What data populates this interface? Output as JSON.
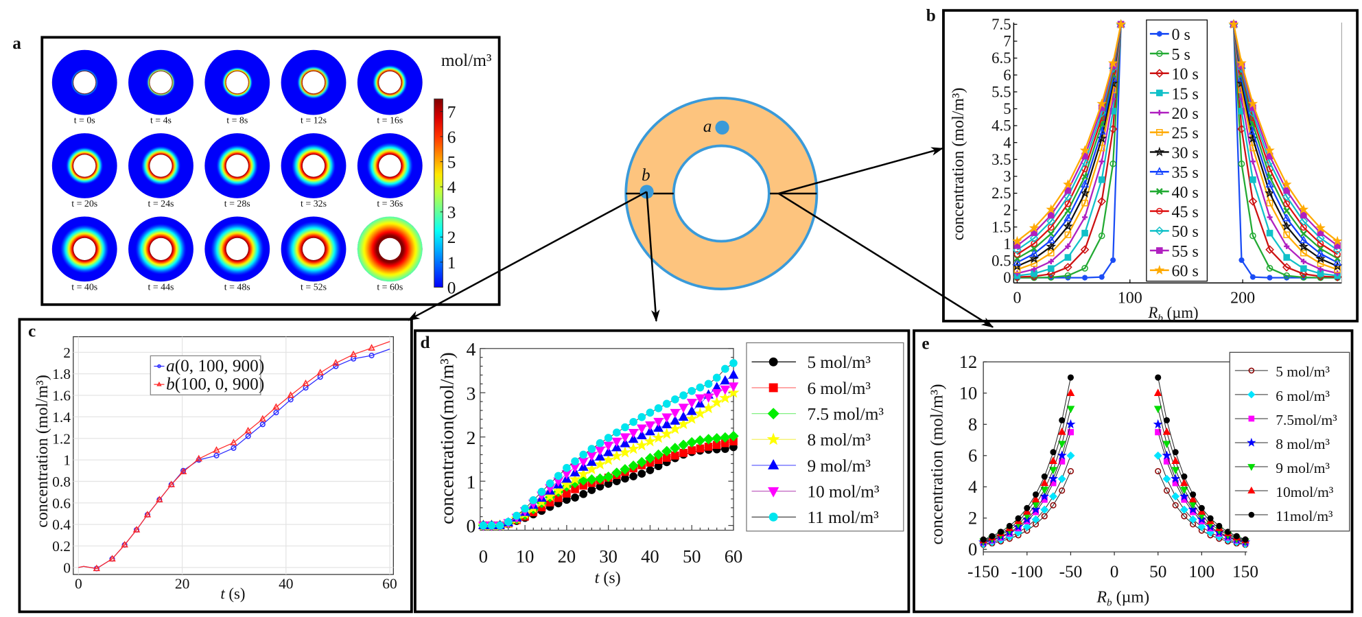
{
  "panel_labels": {
    "a": "a",
    "b": "b",
    "c": "c",
    "d": "d",
    "e": "e"
  },
  "schematic": {
    "point_a": "a",
    "point_b": "b",
    "colors": {
      "annulus": "#fdc47e",
      "border": "#3a9ad9",
      "point": "#3a9ad9"
    }
  },
  "chart_data": [
    {
      "panel": "a",
      "type": "heatmap",
      "colormap": "jet",
      "unit": "mol/m³",
      "frames": [
        {
          "t": 0,
          "label": "t = 0s"
        },
        {
          "t": 4,
          "label": "t = 4s"
        },
        {
          "t": 8,
          "label": "t = 8s"
        },
        {
          "t": 12,
          "label": "t = 12s"
        },
        {
          "t": 16,
          "label": "t = 16s"
        },
        {
          "t": 20,
          "label": "t = 20s"
        },
        {
          "t": 24,
          "label": "t = 24s"
        },
        {
          "t": 28,
          "label": "t = 28s"
        },
        {
          "t": 32,
          "label": "t = 32s"
        },
        {
          "t": 36,
          "label": "t = 36s"
        },
        {
          "t": 40,
          "label": "t = 40s"
        },
        {
          "t": 44,
          "label": "t = 44s"
        },
        {
          "t": 48,
          "label": "t = 48s"
        },
        {
          "t": 52,
          "label": "t = 52s"
        },
        {
          "t": 60,
          "label": "t = 60s"
        }
      ],
      "colorbar": {
        "min": 0,
        "max": 7.5,
        "ticks": [
          0,
          1,
          2,
          3,
          4,
          5,
          6,
          7
        ]
      }
    },
    {
      "panel": "b",
      "type": "line",
      "ylabel": "concentration (mol/m³)",
      "xlabel_var": "R",
      "xlabel_sub": "b",
      "xlabel_unit": " (µm)",
      "xlim": [
        0,
        287
      ],
      "ylim": [
        0,
        7.5
      ],
      "xticks": [
        0,
        100,
        200
      ],
      "yticks": [
        0,
        0.5,
        1,
        1.5,
        2,
        2.5,
        3,
        3.5,
        4,
        4.5,
        5,
        5.5,
        6,
        6.5,
        7,
        7.5
      ],
      "legend_position": "center",
      "symmetric": true,
      "x_left": [
        0,
        15,
        30,
        45,
        60,
        75,
        85,
        92
      ],
      "x_right": [
        192,
        199,
        209,
        224,
        239,
        254,
        269,
        284
      ],
      "series": [
        {
          "name": "0 s",
          "color": "#1a4cf5",
          "marker": "asterisk",
          "filled": false,
          "values_left": [
            0,
            0,
            0,
            0,
            0,
            0.02,
            0.52,
            7.5
          ]
        },
        {
          "name": "5 s",
          "color": "#22aa33",
          "marker": "circle",
          "filled": false,
          "values_left": [
            0,
            0,
            0.01,
            0.06,
            0.28,
            1.24,
            3.37,
            7.5
          ]
        },
        {
          "name": "10 s",
          "color": "#cc1111",
          "marker": "diamond",
          "filled": false,
          "values_left": [
            0.02,
            0.04,
            0.11,
            0.31,
            0.83,
            2.26,
            4.4,
            7.5
          ]
        },
        {
          "name": "15 s",
          "color": "#11c0c8",
          "marker": "square",
          "filled": true,
          "values_left": [
            0.06,
            0.12,
            0.27,
            0.6,
            1.32,
            2.9,
            4.93,
            7.5
          ]
        },
        {
          "name": "20 s",
          "color": "#b020c0",
          "marker": "plus",
          "filled": false,
          "values_left": [
            0.13,
            0.25,
            0.48,
            0.93,
            1.79,
            3.44,
            5.29,
            7.5
          ]
        },
        {
          "name": "25 s",
          "color": "#ffaa00",
          "marker": "square",
          "filled": false,
          "values_left": [
            0.24,
            0.42,
            0.73,
            1.27,
            2.21,
            3.84,
            5.56,
            7.5
          ]
        },
        {
          "name": "30 s",
          "color": "#111111",
          "marker": "star",
          "filled": false,
          "values_left": [
            0.34,
            0.56,
            0.92,
            1.52,
            2.5,
            4.12,
            5.75,
            7.5
          ]
        },
        {
          "name": "35 s",
          "color": "#1040ff",
          "marker": "triangle",
          "filled": false,
          "values_left": [
            0.45,
            0.71,
            1.11,
            1.76,
            2.76,
            4.33,
            5.89,
            7.5
          ]
        },
        {
          "name": "40 s",
          "color": "#22aa33",
          "marker": "x",
          "filled": false,
          "values_left": [
            0.57,
            0.86,
            1.3,
            1.98,
            2.99,
            4.55,
            6.01,
            7.5
          ]
        },
        {
          "name": "45 s",
          "color": "#dd1111",
          "marker": "circle",
          "filled": false,
          "values_left": [
            0.69,
            1.01,
            1.49,
            2.19,
            3.22,
            4.73,
            6.11,
            7.5
          ]
        },
        {
          "name": "50 s",
          "color": "#11c0c8",
          "marker": "diamond",
          "filled": false,
          "values_left": [
            0.82,
            1.17,
            1.67,
            2.4,
            3.42,
            4.88,
            6.2,
            7.5
          ]
        },
        {
          "name": "55 s",
          "color": "#b020c0",
          "marker": "square",
          "filled": true,
          "values_left": [
            0.95,
            1.33,
            1.85,
            2.58,
            3.6,
            5.03,
            6.28,
            7.5
          ]
        },
        {
          "name": "60 s",
          "color": "#ffaa00",
          "marker": "star",
          "filled": true,
          "values_left": [
            1.08,
            1.47,
            2.02,
            2.76,
            3.77,
            5.15,
            6.35,
            7.5
          ]
        }
      ]
    },
    {
      "panel": "c",
      "type": "line",
      "ylabel": "concentration (mol/m³)",
      "xlabel_var": "t",
      "xlabel_unit": " (s)",
      "xlim": [
        -1,
        60.7
      ],
      "ylim": [
        -0.065,
        2.145
      ],
      "xticks": [
        0,
        20,
        40,
        60
      ],
      "yticks": [
        0,
        0.2,
        0.4,
        0.6,
        0.8,
        1,
        1.2,
        1.4,
        1.6,
        1.8,
        2
      ],
      "grid": true,
      "legend_position": "top-left",
      "x": [
        0,
        1,
        3.5,
        6.5,
        8.9,
        11.2,
        13.3,
        15.6,
        17.9,
        20.2,
        23.2,
        26.6,
        29.9,
        32.7,
        35.5,
        38.1,
        40.9,
        43.8,
        46.6,
        49.6,
        53,
        56.5,
        60
      ],
      "series": [
        {
          "name_var": "a",
          "name_coords": "(0, 100, 900)",
          "color": "#2a2aff",
          "marker": "circle",
          "filled": false,
          "values": [
            0,
            0.01,
            -0.01,
            0.08,
            0.21,
            0.35,
            0.49,
            0.63,
            0.77,
            0.9,
            1.0,
            1.04,
            1.11,
            1.22,
            1.33,
            1.44,
            1.56,
            1.67,
            1.77,
            1.87,
            1.94,
            1.97,
            2.03
          ]
        },
        {
          "name_var": "b",
          "name_coords": "(100, 0, 900)",
          "color": "#ff2a2a",
          "marker": "triangle",
          "filled": false,
          "values": [
            0,
            0.01,
            -0.01,
            0.08,
            0.21,
            0.35,
            0.49,
            0.63,
            0.77,
            0.89,
            1.01,
            1.09,
            1.16,
            1.27,
            1.38,
            1.49,
            1.6,
            1.71,
            1.81,
            1.9,
            1.98,
            2.04,
            2.1
          ]
        }
      ]
    },
    {
      "panel": "d",
      "type": "line",
      "ylabel": "concentration(mol/m³)",
      "xlabel_var": "t",
      "xlabel_unit": " (s)",
      "xlim": [
        0,
        60
      ],
      "ylim": [
        -0.11,
        4
      ],
      "xticks": [
        0,
        10,
        20,
        30,
        40,
        50,
        60
      ],
      "yticks": [
        0,
        1,
        2,
        3,
        4
      ],
      "legend_position": "right",
      "x": [
        0,
        2,
        4,
        6,
        8,
        10,
        12,
        14,
        16,
        18,
        20,
        22,
        24,
        26,
        28,
        30,
        32,
        34,
        36,
        38,
        40,
        42,
        44,
        46,
        48,
        50,
        52,
        54,
        56,
        58,
        60
      ],
      "series": [
        {
          "name": "5 mol/m³",
          "color": "#000000",
          "line_color": "#000000",
          "marker": "circle",
          "filled": true,
          "values": [
            0,
            0,
            0,
            0.03,
            0.1,
            0.17,
            0.25,
            0.33,
            0.42,
            0.5,
            0.58,
            0.63,
            0.71,
            0.8,
            0.88,
            0.94,
            1.0,
            1.06,
            1.11,
            1.17,
            1.25,
            1.34,
            1.43,
            1.52,
            1.6,
            1.66,
            1.69,
            1.71,
            1.72,
            1.73,
            1.77
          ]
        },
        {
          "name": "6 mol/m³",
          "color": "#ff0000",
          "line_color": "#ff8080",
          "marker": "square",
          "filled": true,
          "values": [
            0,
            0,
            0,
            0.04,
            0.12,
            0.2,
            0.3,
            0.41,
            0.52,
            0.62,
            0.72,
            0.82,
            0.9,
            0.96,
            1.02,
            1.08,
            1.14,
            1.21,
            1.29,
            1.36,
            1.42,
            1.48,
            1.53,
            1.58,
            1.64,
            1.7,
            1.74,
            1.78,
            1.82,
            1.86,
            1.9
          ]
        },
        {
          "name": "7.5 mol/m³",
          "color": "#00ee00",
          "line_color": "#80f080",
          "marker": "diamond",
          "filled": true,
          "values": [
            0,
            0,
            0,
            0.05,
            0.14,
            0.24,
            0.37,
            0.51,
            0.64,
            0.76,
            0.88,
            0.96,
            1.02,
            1.04,
            1.06,
            1.1,
            1.19,
            1.27,
            1.35,
            1.43,
            1.52,
            1.6,
            1.68,
            1.75,
            1.82,
            1.88,
            1.92,
            1.95,
            1.97,
            1.99,
            2.02
          ]
        },
        {
          "name": "8 mol/m³",
          "color": "#ffff00",
          "line_color": "#f4f060",
          "marker": "star",
          "filled": true,
          "values": [
            0,
            0,
            0,
            0.05,
            0.15,
            0.26,
            0.39,
            0.53,
            0.66,
            0.78,
            0.92,
            1.04,
            1.16,
            1.27,
            1.38,
            1.48,
            1.57,
            1.65,
            1.73,
            1.81,
            1.9,
            1.98,
            2.07,
            2.18,
            2.29,
            2.41,
            2.53,
            2.65,
            2.78,
            2.88,
            3.0
          ]
        },
        {
          "name": "9 mol/m³",
          "color": "#0000ff",
          "line_color": "#6060ff",
          "marker": "triangle",
          "filled": true,
          "values": [
            0,
            0,
            0,
            0.06,
            0.17,
            0.3,
            0.46,
            0.62,
            0.78,
            0.92,
            1.05,
            1.19,
            1.32,
            1.43,
            1.55,
            1.65,
            1.76,
            1.85,
            1.95,
            2.03,
            2.12,
            2.2,
            2.28,
            2.36,
            2.45,
            2.58,
            2.75,
            2.95,
            3.12,
            3.27,
            3.4
          ]
        },
        {
          "name": "10 mol/m³",
          "color": "#ff00ff",
          "line_color": "#c060c0",
          "marker": "triangle-down",
          "filled": true,
          "values": [
            0,
            0,
            0,
            0.06,
            0.18,
            0.33,
            0.5,
            0.68,
            0.85,
            1.0,
            1.17,
            1.32,
            1.45,
            1.58,
            1.7,
            1.81,
            1.9,
            2.0,
            2.1,
            2.2,
            2.27,
            2.35,
            2.45,
            2.55,
            2.67,
            2.78,
            2.88,
            2.9,
            3.0,
            3.08,
            3.15
          ]
        },
        {
          "name": "11 mol/m³",
          "color": "#00e5ee",
          "line_color": "#444444",
          "marker": "circle",
          "filled": true,
          "values": [
            0,
            0,
            0,
            0.08,
            0.22,
            0.38,
            0.57,
            0.76,
            0.95,
            1.12,
            1.3,
            1.45,
            1.6,
            1.73,
            1.86,
            1.98,
            2.1,
            2.22,
            2.34,
            2.45,
            2.55,
            2.65,
            2.75,
            2.85,
            2.94,
            3.04,
            3.12,
            3.2,
            3.34,
            3.54,
            3.67
          ]
        }
      ]
    },
    {
      "panel": "e",
      "type": "line",
      "ylabel": "concentration (mol/m³)",
      "xlabel_var": "R",
      "xlabel_sub": "b",
      "xlabel_unit": " (µm)",
      "xlim": [
        -150,
        150
      ],
      "ylim": [
        0,
        12
      ],
      "xticks": [
        -150,
        -100,
        -50,
        0,
        50,
        100,
        150
      ],
      "yticks": [
        0,
        2,
        4,
        6,
        8,
        10,
        12
      ],
      "legend_position": "right",
      "symmetric": true,
      "x": [
        50,
        60,
        70,
        80,
        90,
        100,
        110,
        120,
        130,
        140,
        150
      ],
      "series": [
        {
          "name": "5 mol/m³",
          "color": "#8b0000",
          "marker": "circle",
          "filled": false,
          "values": [
            5,
            3.76,
            2.82,
            2.12,
            1.6,
            1.2,
            0.9,
            0.68,
            0.51,
            0.38,
            0.29
          ]
        },
        {
          "name": "6 mol/m³",
          "color": "#00e5ff",
          "marker": "diamond",
          "filled": true,
          "values": [
            6,
            4.51,
            3.39,
            2.54,
            1.91,
            1.44,
            1.08,
            0.81,
            0.61,
            0.46,
            0.34
          ]
        },
        {
          "name": "7.5mol/m³",
          "color": "#ff00ff",
          "marker": "square",
          "filled": true,
          "values": [
            7.5,
            5.63,
            4.24,
            3.18,
            2.39,
            1.8,
            1.35,
            1.01,
            0.76,
            0.57,
            0.43
          ]
        },
        {
          "name": "8 mol/m³",
          "color": "#0000ff",
          "marker": "star",
          "filled": true,
          "values": [
            8,
            6.01,
            4.52,
            3.39,
            2.55,
            1.92,
            1.44,
            1.08,
            0.82,
            0.61,
            0.46
          ]
        },
        {
          "name": "9 mol/m³",
          "color": "#00dd00",
          "marker": "triangle-down",
          "filled": true,
          "values": [
            9,
            6.76,
            5.09,
            3.82,
            2.87,
            2.16,
            1.62,
            1.22,
            0.92,
            0.68,
            0.51
          ]
        },
        {
          "name": "10mol/m³",
          "color": "#ff0000",
          "marker": "triangle",
          "filled": true,
          "values": [
            10,
            7.51,
            5.65,
            4.24,
            3.19,
            2.4,
            1.8,
            1.35,
            1.02,
            0.76,
            0.57
          ]
        },
        {
          "name": "11mol/m³",
          "color": "#000000",
          "marker": "circle",
          "filled": true,
          "values": [
            11,
            8.26,
            6.22,
            4.66,
            3.51,
            2.64,
            1.98,
            1.49,
            1.12,
            0.84,
            0.63
          ]
        }
      ]
    }
  ]
}
